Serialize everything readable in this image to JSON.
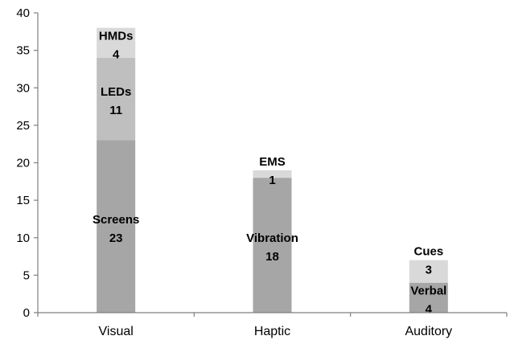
{
  "chart_data": {
    "type": "bar",
    "stacked": true,
    "categories": [
      "Visual",
      "Haptic",
      "Auditory"
    ],
    "ylim": [
      0,
      40
    ],
    "yticks": [
      0,
      5,
      10,
      15,
      20,
      25,
      30,
      35,
      40
    ],
    "grid": false,
    "legend": "none",
    "title": "",
    "xlabel": "",
    "ylabel": "",
    "segments": [
      [
        {
          "name": "Screens",
          "value": 23,
          "label": "23",
          "color": "#a6a6a6"
        },
        {
          "name": "LEDs",
          "value": 11,
          "label": "11",
          "color": "#bfbfbf"
        },
        {
          "name": "HMDs",
          "value": 4,
          "label": "4",
          "color": "#d9d9d9"
        }
      ],
      [
        {
          "name": "Vibration",
          "value": 18,
          "label": "18",
          "color": "#a6a6a6"
        },
        {
          "name": "EMS",
          "value": 1,
          "label": "1",
          "color": "#d9d9d9"
        }
      ],
      [
        {
          "name": "Verbal",
          "value": 4,
          "label": "4",
          "color": "#a6a6a6"
        },
        {
          "name": "Cues",
          "value": 3,
          "label": "3",
          "color": "#d9d9d9"
        }
      ]
    ]
  }
}
